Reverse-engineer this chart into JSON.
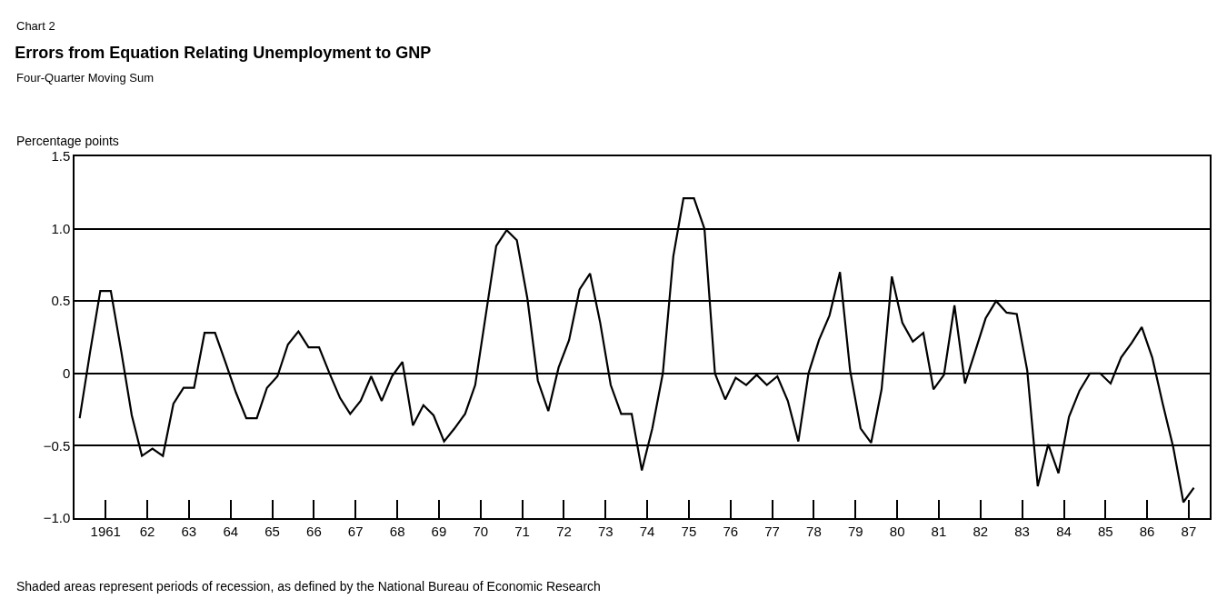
{
  "chart_data": {
    "type": "line",
    "title": "Errors from Equation Relating Unemployment to GNP",
    "subtitle": "Four-Quarter Moving Sum",
    "ylabel": "Percentage points",
    "annotations": [
      "Chart 2",
      "Shaded areas represent periods of recession, as defined by the National Bureau of Economic Research"
    ],
    "x": [
      "1960-11-15",
      "1961-02-15",
      "1961-05-15",
      "1961-08-15",
      "1961-11-15",
      "1962-02-15",
      "1962-05-15",
      "1962-08-15",
      "1962-11-15",
      "1963-02-15",
      "1963-05-15",
      "1963-08-15",
      "1963-11-15",
      "1964-02-15",
      "1964-05-15",
      "1964-08-15",
      "1964-11-15",
      "1965-02-15",
      "1965-05-15",
      "1965-08-15",
      "1965-11-15",
      "1966-02-15",
      "1966-05-15",
      "1966-08-15",
      "1966-11-15",
      "1967-02-15",
      "1967-05-15",
      "1967-08-15",
      "1967-11-15",
      "1968-02-15",
      "1968-05-15",
      "1968-08-15",
      "1968-11-15",
      "1969-02-15",
      "1969-05-15",
      "1969-08-15",
      "1969-11-15",
      "1970-02-15",
      "1970-05-15",
      "1970-08-15",
      "1970-11-15",
      "1971-02-15",
      "1971-05-15",
      "1971-08-15",
      "1971-11-15",
      "1972-02-15",
      "1972-05-15",
      "1972-08-15",
      "1972-11-15",
      "1973-02-15",
      "1973-05-15",
      "1973-08-15",
      "1973-11-15",
      "1974-02-15",
      "1974-05-15",
      "1974-08-15",
      "1974-11-15",
      "1975-02-15",
      "1975-05-15",
      "1975-08-15",
      "1975-11-15",
      "1976-02-15",
      "1976-05-15",
      "1976-08-15",
      "1976-11-15",
      "1977-02-15",
      "1977-05-15",
      "1977-08-15",
      "1977-11-15",
      "1978-02-15",
      "1978-05-15",
      "1978-08-15",
      "1978-11-15",
      "1979-02-15",
      "1979-05-15",
      "1979-08-15",
      "1979-11-15",
      "1980-02-15",
      "1980-05-15",
      "1980-08-15",
      "1980-11-15",
      "1981-02-15",
      "1981-05-15",
      "1981-08-15",
      "1981-11-15",
      "1982-02-15",
      "1982-05-15",
      "1982-08-15",
      "1982-11-15",
      "1983-02-15",
      "1983-05-15",
      "1983-08-15",
      "1983-11-15",
      "1984-02-15",
      "1984-05-15",
      "1984-08-15",
      "1984-11-15",
      "1985-02-15",
      "1985-05-15",
      "1985-08-15",
      "1985-11-15",
      "1986-02-15",
      "1986-05-15",
      "1986-08-15",
      "1986-11-15",
      "1987-02-15",
      "1987-05-15",
      "1987-08-15"
    ],
    "series": [
      {
        "color": "#000000",
        "values": [
          -0.31,
          0.15,
          0.57,
          0.57,
          0.15,
          -0.29,
          -0.57,
          -0.52,
          -0.57,
          -0.21,
          -0.1,
          -0.1,
          0.28,
          0.28,
          0.08,
          -0.13,
          -0.31,
          -0.31,
          -0.1,
          -0.02,
          0.2,
          0.29,
          0.18,
          0.18,
          0.0,
          -0.17,
          -0.28,
          -0.19,
          -0.02,
          -0.19,
          -0.02,
          0.08,
          -0.36,
          -0.22,
          -0.29,
          -0.47,
          -0.38,
          -0.28,
          -0.08,
          0.4,
          0.88,
          0.99,
          0.92,
          0.52,
          -0.05,
          -0.26,
          0.04,
          0.23,
          0.58,
          0.69,
          0.35,
          -0.08,
          -0.28,
          -0.28,
          -0.67,
          -0.38,
          0.0,
          0.81,
          1.21,
          1.21,
          1.0,
          0.0,
          -0.18,
          -0.03,
          -0.08,
          -0.01,
          -0.08,
          -0.02,
          -0.19,
          -0.47,
          0.0,
          0.23,
          0.4,
          0.7,
          0.02,
          -0.38,
          -0.48,
          -0.11,
          0.67,
          0.35,
          0.22,
          0.28,
          -0.11,
          -0.01,
          0.47,
          -0.07,
          0.15,
          0.38,
          0.5,
          0.42,
          0.41,
          0.02,
          -0.78,
          -0.49,
          -0.69,
          -0.3,
          -0.12,
          0.0,
          0.0,
          -0.07,
          0.11,
          0.21,
          0.32,
          0.11,
          -0.21,
          -0.51,
          -0.89,
          -0.79
        ]
      }
    ],
    "xlim": [
      "1960-10",
      "1988"
    ],
    "ylim": [
      -1.0,
      1.5
    ],
    "yticks": [
      {
        "value": 1.5,
        "label": "1.5"
      },
      {
        "value": 1.0,
        "label": "1.0"
      },
      {
        "value": 0.5,
        "label": "0.5"
      },
      0,
      {
        "value": -0.5,
        "label": "−0.5"
      },
      {
        "value": -1.0,
        "label": "−1.0"
      }
    ],
    "xticks": [
      {
        "value": "1961-07",
        "label": "1961"
      },
      {
        "value": "1962-07",
        "label": "62"
      },
      {
        "value": "1963-07",
        "label": "63"
      },
      {
        "value": "1964-07",
        "label": "64"
      },
      {
        "value": "1965-07",
        "label": "65"
      },
      {
        "value": "1966-07",
        "label": "66"
      },
      {
        "value": "1967-07",
        "label": "67"
      },
      {
        "value": "1968-07",
        "label": "68"
      },
      {
        "value": "1969-07",
        "label": "69"
      },
      {
        "value": "1970-07",
        "label": "70"
      },
      {
        "value": "1971-07",
        "label": "71"
      },
      {
        "value": "1972-07",
        "label": "72"
      },
      {
        "value": "1973-07",
        "label": "73"
      },
      {
        "value": "1974-07",
        "label": "74"
      },
      {
        "value": "1975-07",
        "label": "75"
      },
      {
        "value": "1976-07",
        "label": "76"
      },
      {
        "value": "1977-07",
        "label": "77"
      },
      {
        "value": "1978-07",
        "label": "78"
      },
      {
        "value": "1979-07",
        "label": "79"
      },
      {
        "value": "1980-07",
        "label": "80"
      },
      {
        "value": "1981-07",
        "label": "81"
      },
      {
        "value": "1982-07",
        "label": "82"
      },
      {
        "value": "1983-07",
        "label": "83"
      },
      {
        "value": "1984-07",
        "label": "84"
      },
      {
        "value": "1985-07",
        "label": "85"
      },
      {
        "value": "1986-07",
        "label": "86"
      },
      {
        "value": "1987-07",
        "label": "87"
      }
    ],
    "grid": "y",
    "marker": "none",
    "line_style": "solid"
  }
}
